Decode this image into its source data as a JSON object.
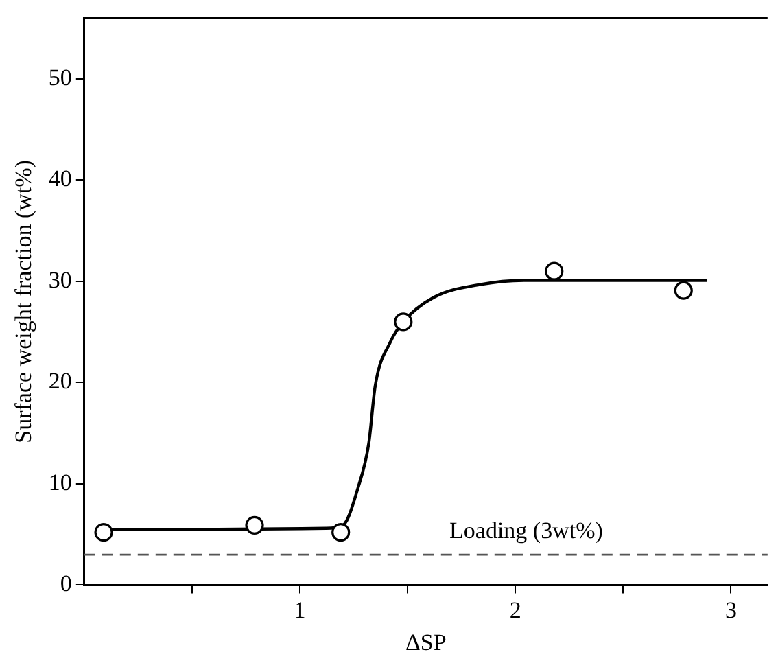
{
  "chart_data": {
    "type": "scatter",
    "xlabel": "ΔSP",
    "ylabel": "Surface weight fraction (wt%)",
    "xlim": [
      0,
      3.17
    ],
    "xticks": [
      {
        "value": 0.5,
        "label": null
      },
      1,
      {
        "value": 1.5,
        "label": null
      },
      2,
      {
        "value": 2.5,
        "label": null
      },
      3
    ],
    "ylim": [
      0,
      56
    ],
    "yticks": [
      0,
      10,
      20,
      30,
      40,
      50
    ],
    "grid": false,
    "legend": false,
    "series": [
      {
        "color": "#000000",
        "marker": "circle",
        "x": [
          0.09,
          0.79,
          1.19,
          1.48,
          2.18,
          2.78
        ],
        "values": [
          5.2,
          5.9,
          5.2,
          26.0,
          31.0,
          29.1
        ]
      },
      {
        "type": "line",
        "color": "#000000",
        "marker": "none",
        "line_style": "solid",
        "x": [
          0.09,
          0.6,
          1.12,
          1.2,
          1.27,
          1.32,
          1.35,
          1.42,
          1.48,
          1.62,
          1.84,
          2.05,
          2.89
        ],
        "values": [
          5.5,
          5.5,
          5.6,
          5.9,
          9.6,
          14.0,
          19.7,
          24.0,
          26.0,
          28.4,
          29.7,
          30.1,
          30.1
        ]
      }
    ],
    "ref_lines": [
      {
        "axis": "y",
        "value": 3,
        "label": "Loading (3wt%)",
        "color": "#555555",
        "line_style": "dashed"
      }
    ]
  }
}
